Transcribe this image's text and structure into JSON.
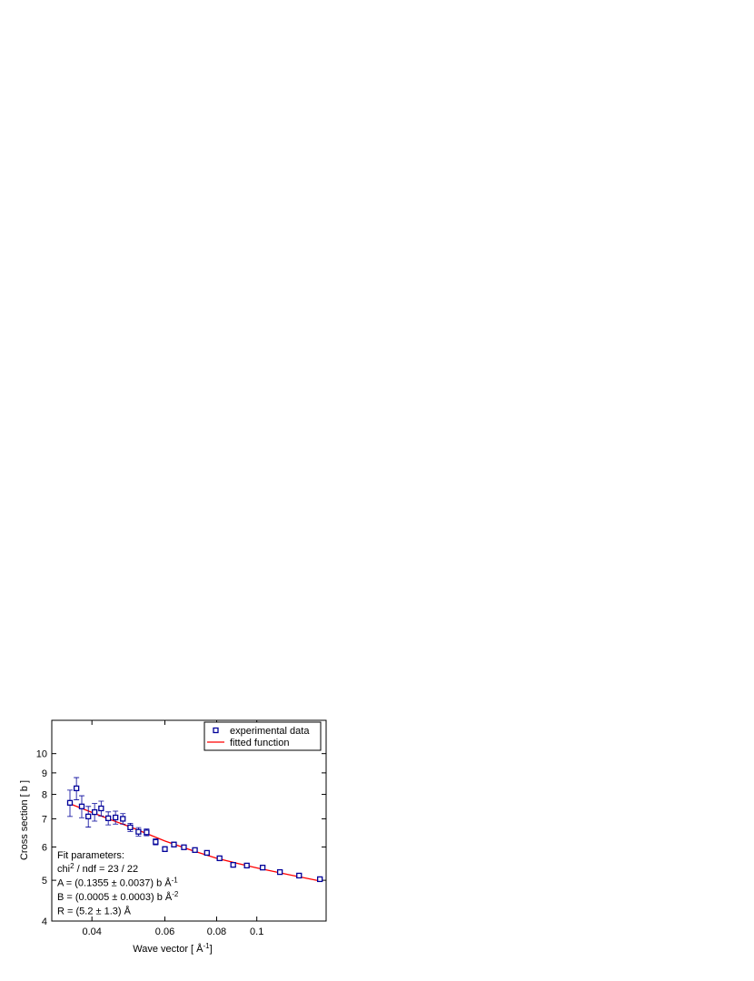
{
  "chart_data": {
    "type": "scatter",
    "xlabel": [
      "Wave vector [ Å",
      "-1",
      "]"
    ],
    "ylabel": "Cross section [ b ]",
    "log_x": true,
    "log_y": true,
    "xlim": [
      0.032,
      0.147
    ],
    "ylim": [
      4,
      12
    ],
    "xticks": [
      0.04,
      0.06,
      0.08,
      0.1
    ],
    "yticks": [
      4,
      5,
      6,
      7,
      8,
      9,
      10
    ],
    "legend": "upper right",
    "series": [
      {
        "name": "experimental data",
        "type": "scatter",
        "color": "#000099",
        "x": [
          0.0354,
          0.0367,
          0.0378,
          0.0392,
          0.0406,
          0.0421,
          0.0438,
          0.0456,
          0.0475,
          0.0495,
          0.0518,
          0.0542,
          0.057,
          0.06,
          0.0631,
          0.0667,
          0.0709,
          0.0758,
          0.0813,
          0.0877,
          0.0946,
          0.1033,
          0.1137,
          0.1265,
          0.142
        ],
        "values": [
          7.64,
          8.27,
          7.49,
          7.09,
          7.26,
          7.41,
          7.02,
          7.05,
          7.0,
          6.68,
          6.52,
          6.5,
          6.17,
          5.93,
          6.08,
          5.99,
          5.9,
          5.81,
          5.64,
          5.44,
          5.42,
          5.36,
          5.23,
          5.13,
          5.03
        ],
        "errors": [
          0.55,
          0.5,
          0.45,
          0.4,
          0.35,
          0.3,
          0.25,
          0.25,
          0.2,
          0.15,
          0.15,
          0.12,
          0.1,
          0.08,
          0.08,
          0.07,
          0.06,
          0.06,
          0.05,
          0.05,
          0.05,
          0.05,
          0.04,
          0.04,
          0.04
        ]
      },
      {
        "name": "fitted function",
        "type": "line",
        "color": "#ff0000",
        "x": [
          0.0354,
          0.04,
          0.045,
          0.05,
          0.06,
          0.07,
          0.08,
          0.09,
          0.1,
          0.12,
          0.142
        ],
        "values": [
          7.6,
          7.25,
          6.93,
          6.67,
          6.2,
          5.88,
          5.64,
          5.48,
          5.35,
          5.15,
          4.98
        ]
      }
    ],
    "annotation": {
      "color": "#008000",
      "title": "Fit parameters:",
      "lines": [
        [
          "chi",
          "2",
          " / ndf = 23 / 22"
        ],
        [
          "A = (0.1355 ± 0.0037) b Å",
          "-1"
        ],
        [
          "B = (0.0005 ± 0.0003) b Å",
          "-2"
        ],
        [
          "R = (5.2 ± 1.3) Å"
        ]
      ]
    }
  }
}
